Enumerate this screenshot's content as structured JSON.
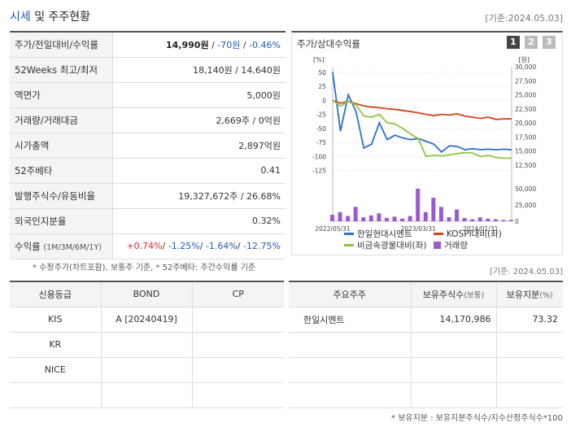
{
  "header": {
    "title_accent": "시세",
    "title_rest": " 및 주주현황",
    "basedate": "[기준:2024.05.03]"
  },
  "price_rows": [
    {
      "label": "주가/전일대비/수익률",
      "price": "14,990원",
      "sep1": " / ",
      "change": "-70원",
      "sep2": " / ",
      "rate": "-0.46%"
    },
    {
      "label": "52Weeks 최고/최저",
      "value": "18,140원 / 14,640원"
    },
    {
      "label": "액면가",
      "value": "5,000원"
    },
    {
      "label": "거래량/거래대금",
      "value": "2,669주 / 0억원"
    },
    {
      "label": "시가총액",
      "value": "2,897억원"
    },
    {
      "label": "52주베타",
      "value": "0.41"
    },
    {
      "label": "발행주식수/유동비율",
      "value": "19,327,672주 / 26.68%"
    },
    {
      "label": "외국인지분율",
      "value": "0.32%"
    },
    {
      "label": "수익률",
      "label_sub": "(1M/3M/6M/1Y)",
      "r1": "+0.74%",
      "r2": "-1.25%",
      "r3": "-1.64%",
      "r4": "-12.75%",
      "slash": "/ "
    }
  ],
  "chart_panel": {
    "title": "주가/상대수익률",
    "pages": [
      "1",
      "2",
      "3"
    ]
  },
  "chart_data": {
    "type": "line",
    "y_left_label": "[%]",
    "y_right_label": "[원]",
    "y_left_ticks": [
      "50",
      "25",
      "0",
      "-25",
      "-50",
      "-75",
      "-100",
      "-125"
    ],
    "y_right_ticks": [
      "30,000",
      "27,500",
      "25,000",
      "22,500",
      "20,000",
      "17,500",
      "15,000",
      "12,500"
    ],
    "volume_ticks": [
      "50,000",
      "25,000",
      "0"
    ],
    "x_ticks": [
      "2022/05/31",
      "2023/03/31",
      "2024/01/31"
    ],
    "x_range": [
      0,
      23
    ],
    "y_left_range": [
      -140,
      60
    ],
    "y_right_range": [
      10000,
      30000
    ],
    "series": [
      {
        "name": "한일현대시멘트",
        "color": "#2b6fd1",
        "axis": "right",
        "values": [
          29000,
          18500,
          25000,
          22000,
          15500,
          16200,
          20000,
          17000,
          17800,
          17300,
          17000,
          17200,
          16700,
          16200,
          14800,
          15900,
          15800,
          15200,
          15400,
          15200,
          15300,
          15200,
          15300,
          15200
        ]
      },
      {
        "name": "KOSPI대비(좌)",
        "color": "#d5421e",
        "axis": "left",
        "values": [
          0,
          -5,
          -2,
          -6,
          -10,
          -12,
          -13,
          -15,
          -16,
          -18,
          -20,
          -22,
          -25,
          -27,
          -25,
          -26,
          -24,
          -28,
          -30,
          -32,
          -30,
          -34,
          -33,
          -33
        ]
      },
      {
        "name": "비금속광물대비(좌)",
        "color": "#8cc63f",
        "axis": "left",
        "values": [
          0,
          -10,
          -2,
          -8,
          -28,
          -30,
          -25,
          -40,
          -42,
          -50,
          -60,
          -68,
          -100,
          -98,
          -99,
          -97,
          -95,
          -93,
          -94,
          -100,
          -98,
          -102,
          -103,
          -103
        ]
      }
    ],
    "volume": {
      "name": "거래량",
      "color": "#9b59d0",
      "max": 50000,
      "values": [
        10000,
        14000,
        8000,
        22000,
        6000,
        9000,
        12000,
        5000,
        7000,
        4000,
        8000,
        50000,
        14000,
        36000,
        22000,
        6000,
        18000,
        5000,
        3000,
        6000,
        4000,
        3000,
        2000,
        2000
      ]
    }
  },
  "notes": {
    "price_note": "* 수정주가(차트포함), 보통주 기준, * 52주베타: 주간수익률 기준",
    "holder_basedate": "[기준: 2024.05.03]",
    "holder_note": "* 보유지분 : 보유지분주식수/지수산정주식수*100"
  },
  "credit": {
    "headers": [
      "신용등급",
      "BOND",
      "CP"
    ],
    "rows": [
      [
        "KIS",
        "A [20240419]",
        ""
      ],
      [
        "KR",
        "",
        ""
      ],
      [
        "NICE",
        "",
        ""
      ],
      [
        "",
        "",
        ""
      ]
    ]
  },
  "holders": {
    "headers": {
      "h1": "주요주주",
      "h2": "보유주식수",
      "h2_unit": "(보통)",
      "h3": "보유지분",
      "h3_unit": "(%)"
    },
    "rows": [
      {
        "name": "한일시멘트",
        "shares": "14,170,986",
        "pct": "73.32"
      },
      {
        "name": "",
        "shares": "",
        "pct": ""
      },
      {
        "name": "",
        "shares": "",
        "pct": ""
      },
      {
        "name": "",
        "shares": "",
        "pct": ""
      }
    ]
  }
}
